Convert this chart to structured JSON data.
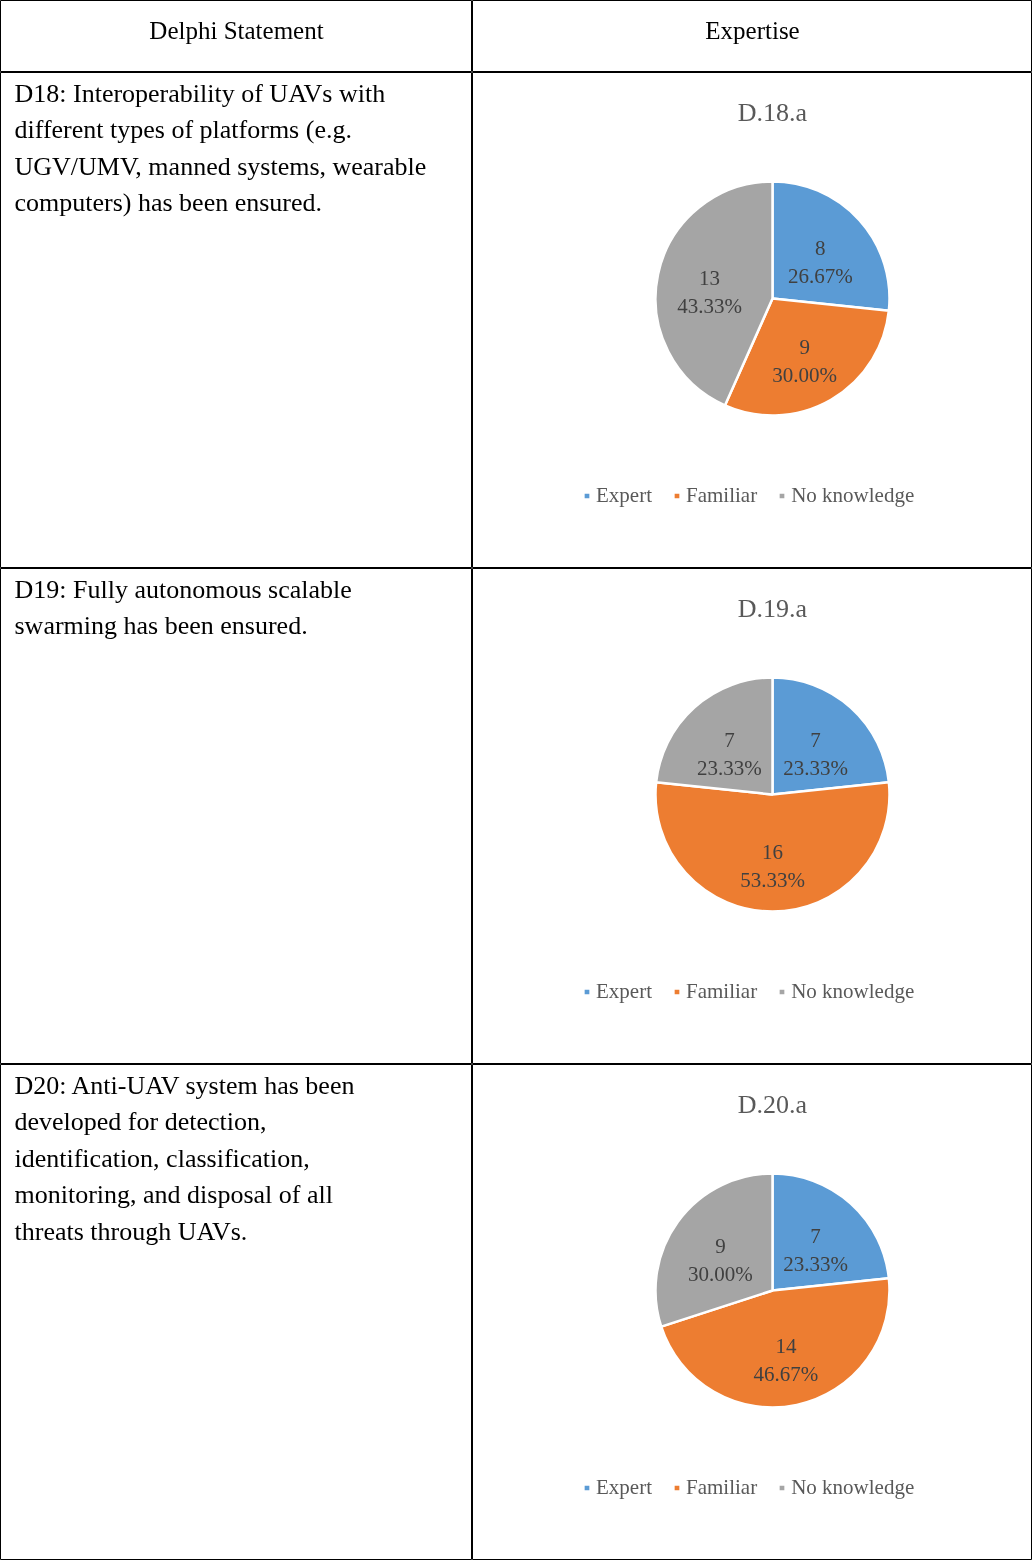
{
  "chart_data": [
    {
      "type": "other",
      "title": "Delphi Statement"
    },
    {
      "type": "other",
      "title": "Expertise"
    },
    {
      "type": "other",
      "annotations": [
        "D18: Interoperability of UAVs with different types of platforms (e.g. UGV/UMV, manned systems, wearable computers) has been ensured."
      ]
    },
    {
      "type": "pie",
      "title": "D.18.a",
      "categories": [
        "Expert",
        "Familiar",
        "No knowledge"
      ],
      "values": [
        8,
        9,
        13
      ],
      "colors": [
        "#5b9bd5",
        "#ed7d31",
        "#a5a5a5"
      ],
      "value_labels": [
        "8\n26.67%",
        "9\n30.00%",
        "13\n43.33%"
      ],
      "legend": "bottom"
    },
    {
      "type": "other",
      "annotations": [
        "D19: Fully autonomous scalable swarming has been ensured."
      ]
    },
    {
      "type": "pie",
      "title": "D.19.a",
      "categories": [
        "Expert",
        "Familiar",
        "No knowledge"
      ],
      "values": [
        7,
        16,
        7
      ],
      "colors": [
        "#5b9bd5",
        "#ed7d31",
        "#a5a5a5"
      ],
      "value_labels": [
        "7\n23.33%",
        "16\n53.33%",
        "7\n23.33%"
      ],
      "legend": "bottom"
    },
    {
      "type": "other",
      "annotations": [
        "D20: Anti-UAV system has been developed for detection, identification, classification, monitoring, and disposal of all threats through UAVs."
      ]
    },
    {
      "type": "pie",
      "title": "D.20.a",
      "categories": [
        "Expert",
        "Familiar",
        "No knowledge"
      ],
      "values": [
        7,
        14,
        9
      ],
      "colors": [
        "#5b9bd5",
        "#ed7d31",
        "#a5a5a5"
      ],
      "value_labels": [
        "7\n23.33%",
        "14\n46.67%",
        "9\n30.00%"
      ],
      "legend": "bottom"
    }
  ]
}
